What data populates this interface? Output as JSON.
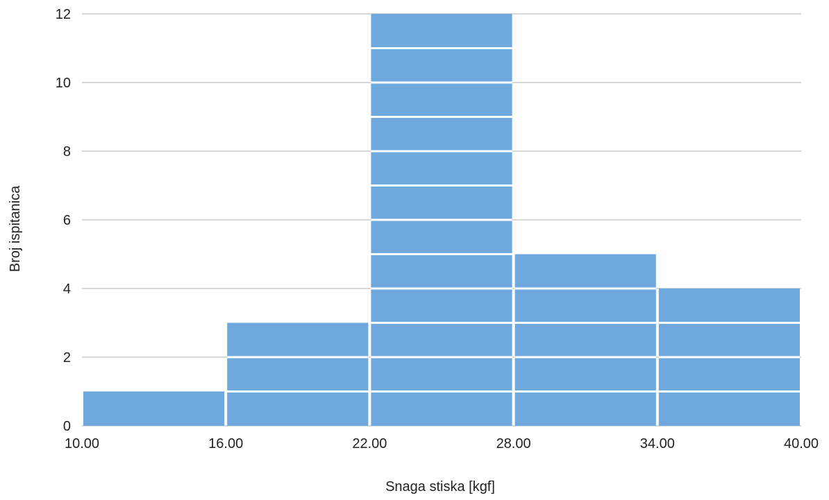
{
  "chart_data": {
    "type": "bar",
    "subtype": "histogram",
    "bins": [
      {
        "start": 10,
        "end": 16,
        "count": 1
      },
      {
        "start": 16,
        "end": 22,
        "count": 3
      },
      {
        "start": 22,
        "end": 28,
        "count": 12
      },
      {
        "start": 28,
        "end": 34,
        "count": 5
      },
      {
        "start": 34,
        "end": 40,
        "count": 4
      }
    ],
    "x_ticks": [
      "10.00",
      "16.00",
      "22.00",
      "28.00",
      "34.00",
      "40.00"
    ],
    "y_ticks": [
      "0",
      "2",
      "4",
      "6",
      "8",
      "10",
      "12"
    ],
    "xlim": [
      10,
      40
    ],
    "ylim": [
      0,
      12
    ],
    "xlabel": "Snaga stiska [kgf]",
    "ylabel": "Broj ispitanica",
    "grid": "horizontal",
    "bar_color": "#6fa8dc",
    "unit_separator_color": "#ffffff",
    "gridline_color": "#cccccc"
  }
}
